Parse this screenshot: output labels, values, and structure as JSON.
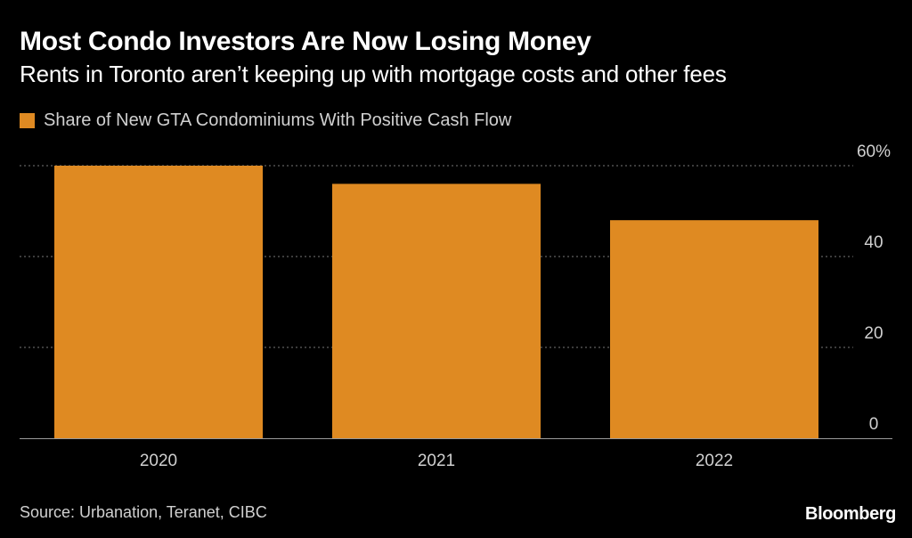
{
  "brand": "Bloomberg",
  "source": "Source: Urbanation, Teranet, CIBC",
  "colors": {
    "bar": "#df8a22",
    "background": "#000000",
    "grid": "#777777",
    "axis": "#9a9a9a",
    "tick_text": "#d0d0d0"
  },
  "chart_data": {
    "type": "bar",
    "title": "Most Condo Investors Are Now Losing Money",
    "subtitle": "Rents in Toronto aren’t keeping up with mortgage costs and other fees",
    "legend": "Share of New GTA Condominiums With Positive Cash Flow",
    "legend_position": "top-left",
    "categories": [
      "2020",
      "2021",
      "2022"
    ],
    "values": [
      60,
      56,
      48
    ],
    "ylim": [
      0,
      60
    ],
    "yticks": [
      0,
      20,
      40,
      60
    ],
    "ytick_labels": [
      "0",
      "20",
      "40",
      "60%"
    ],
    "xlabel": "",
    "ylabel": "",
    "grid": true,
    "y_axis_side": "right"
  }
}
